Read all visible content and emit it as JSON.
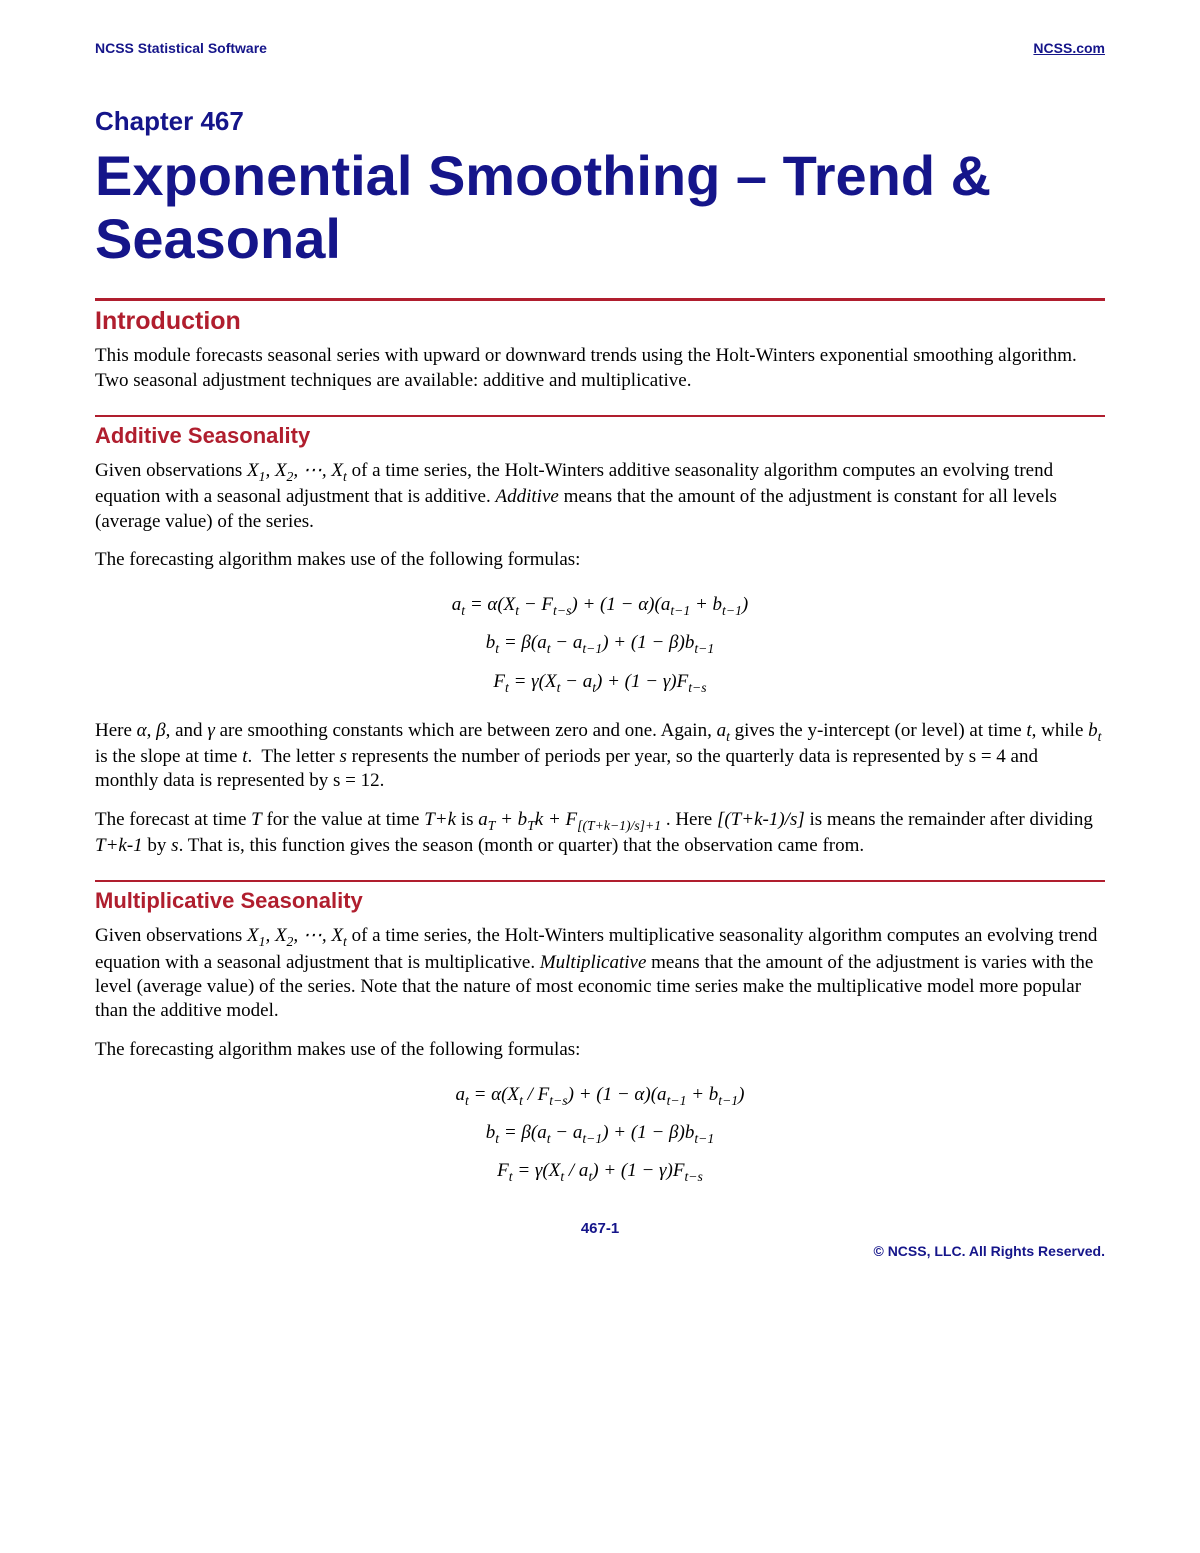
{
  "header": {
    "left": "NCSS Statistical Software",
    "right": "NCSS.com"
  },
  "chapter": "Chapter 467",
  "title": "Exponential Smoothing – Trend & Seasonal",
  "sections": {
    "intro": {
      "heading": "Introduction",
      "p1": "This module forecasts seasonal series with upward or downward trends using the Holt-Winters exponential smoothing algorithm. Two seasonal adjustment techniques are available: additive and multiplicative."
    },
    "additive": {
      "heading": "Additive Seasonality",
      "p1_pre": "Given observations ",
      "p1_obs": "X₁, X₂, ⋯, Xₜ",
      "p1_post": " of a time series, the Holt-Winters additive seasonality algorithm computes an evolving trend equation with a seasonal adjustment that is additive. ",
      "p1_emph": "Additive",
      "p1_tail": " means that the amount of the adjustment is constant for all levels (average value) of the series.",
      "p2": "The forecasting algorithm makes use of the following formulas:",
      "formula1": "aₜ = α(Xₜ − Fₜ₋ₛ) + (1 − α)(aₜ₋₁ + bₜ₋₁)",
      "formula2": "bₜ = β(aₜ − aₜ₋₁) + (1 − β)bₜ₋₁",
      "formula3": "Fₜ = γ(Xₜ − aₜ) + (1 − γ)Fₜ₋ₛ",
      "p3": "Here α, β, and γ are smoothing constants which are between zero and one. Again, aₜ gives the y-intercept (or level) at time t, while bₜ is the slope at time t.  The letter s represents the number of periods per year, so the quarterly data is represented by s = 4 and monthly data is represented by s = 12.",
      "p4": "The forecast at time T for the value at time T+k is aT + bTk + F[(T+k−1)/s]+1 . Here [(T+k-1)/s] is means the remainder after dividing T+k-1 by s. That is, this function gives the season (month or quarter) that the observation came from."
    },
    "multiplicative": {
      "heading": "Multiplicative Seasonality",
      "p1_pre": "Given observations ",
      "p1_obs": "X₁, X₂, ⋯, Xₜ",
      "p1_post": " of a time series, the Holt-Winters multiplicative seasonality algorithm computes an evolving trend equation with a seasonal adjustment that is multiplicative. ",
      "p1_emph": "Multiplicative",
      "p1_tail": " means that the amount of the adjustment is varies with the level (average value) of the series. Note that the nature of most economic time series make the multiplicative model more popular than the additive model.",
      "p2": "The forecasting algorithm makes use of the following formulas:",
      "formula1": "aₜ = α(Xₜ / Fₜ₋ₛ) + (1 − α)(aₜ₋₁ + bₜ₋₁)",
      "formula2": "bₜ = β(aₜ − aₜ₋₁) + (1 − β)bₜ₋₁",
      "formula3": "Fₜ = γ(Xₜ / aₜ) + (1 − γ)Fₜ₋ₛ"
    }
  },
  "footer": {
    "page": "467-1",
    "copyright": "© NCSS, LLC. All Rights Reserved."
  }
}
